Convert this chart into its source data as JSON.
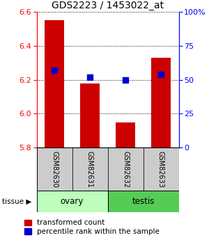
{
  "title": "GDS2223 / 1453022_at",
  "samples": [
    "GSM82630",
    "GSM82631",
    "GSM82632",
    "GSM82633"
  ],
  "bar_values": [
    6.55,
    6.18,
    5.95,
    6.33
  ],
  "percentile_ranks": [
    57,
    52,
    50,
    54
  ],
  "bar_bottom": 5.8,
  "ylim": [
    5.8,
    6.6
  ],
  "yticks": [
    5.8,
    6.0,
    6.2,
    6.4,
    6.6
  ],
  "right_yticks": [
    0,
    25,
    50,
    75,
    100
  ],
  "tissue_groups": [
    {
      "label": "ovary",
      "samples": [
        0,
        1
      ],
      "color": "#bbffbb"
    },
    {
      "label": "testis",
      "samples": [
        2,
        3
      ],
      "color": "#55cc55"
    }
  ],
  "bar_color": "#cc0000",
  "dot_color": "#0000cc",
  "bar_width": 0.55,
  "label_area_color": "#cccccc",
  "title_fontsize": 10,
  "tick_fontsize": 8,
  "legend_fontsize": 7.5
}
